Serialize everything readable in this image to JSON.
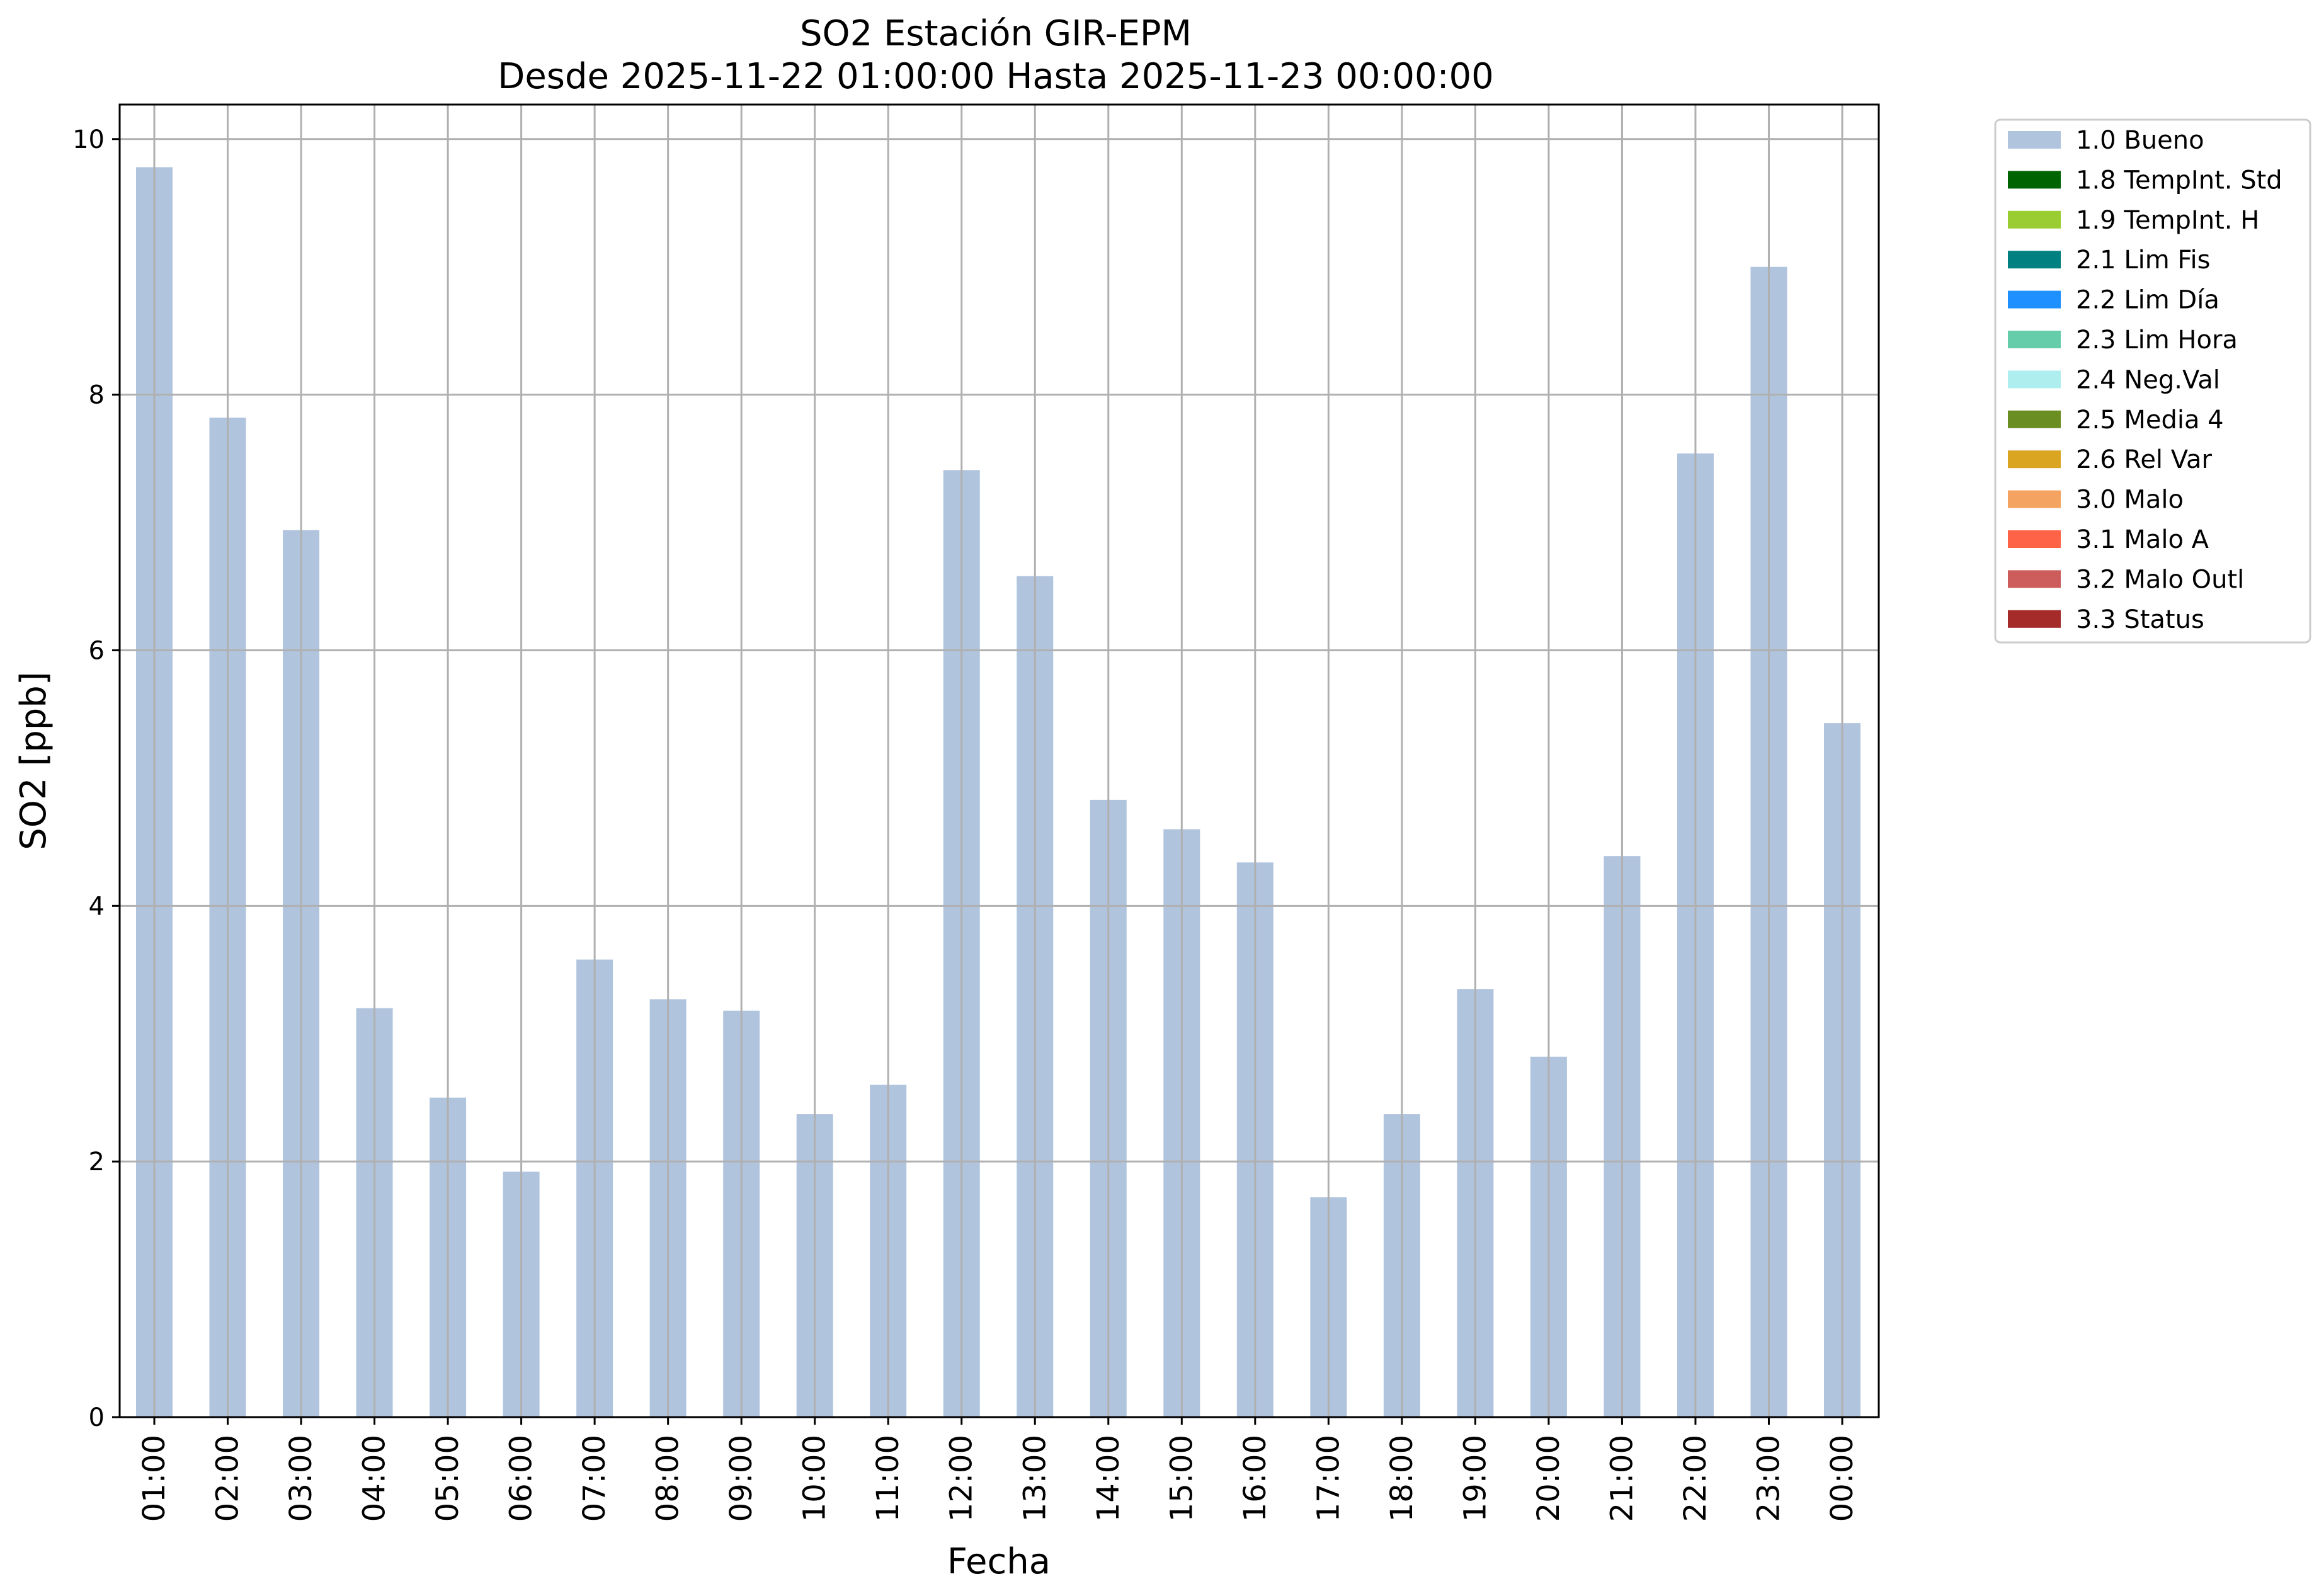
{
  "chart_data": {
    "type": "bar",
    "title": "SO2 Estación GIR-EPM",
    "subtitle": "Desde 2025-11-22 01:00:00 Hasta 2025-11-23 00:00:00",
    "xlabel": "Fecha",
    "ylabel": "SO2 [ppb]",
    "ylim": [
      0,
      10.27
    ],
    "yticks": [
      0,
      2,
      4,
      6,
      8,
      10
    ],
    "grid": true,
    "legend_position": "outside-right",
    "categories": [
      "01:00",
      "02:00",
      "03:00",
      "04:00",
      "05:00",
      "06:00",
      "07:00",
      "08:00",
      "09:00",
      "10:00",
      "11:00",
      "12:00",
      "13:00",
      "14:00",
      "15:00",
      "16:00",
      "17:00",
      "18:00",
      "19:00",
      "20:00",
      "21:00",
      "22:00",
      "23:00",
      "00:00"
    ],
    "series": [
      {
        "name": "1.0 Bueno",
        "color": "#b0c4de",
        "values": [
          9.78,
          7.82,
          6.94,
          3.2,
          2.5,
          1.92,
          3.58,
          3.27,
          3.18,
          2.37,
          2.6,
          7.41,
          6.58,
          4.83,
          4.6,
          4.34,
          1.72,
          2.37,
          3.35,
          2.82,
          4.39,
          7.54,
          9.0,
          5.43
        ]
      }
    ],
    "legend": [
      {
        "label": "1.0 Bueno",
        "color": "#b0c4de"
      },
      {
        "label": "1.8 TempInt. Std",
        "color": "#006400"
      },
      {
        "label": "1.9 TempInt. H",
        "color": "#9acd32"
      },
      {
        "label": "2.1 Lim Fis",
        "color": "#008080"
      },
      {
        "label": "2.2 Lim Día",
        "color": "#1e90ff"
      },
      {
        "label": "2.3 Lim Hora",
        "color": "#66cdaa"
      },
      {
        "label": "2.4 Neg.Val",
        "color": "#afeeee"
      },
      {
        "label": "2.5 Media 4",
        "color": "#6b8e23"
      },
      {
        "label": "2.6 Rel Var",
        "color": "#daa520"
      },
      {
        "label": "3.0 Malo",
        "color": "#f4a460"
      },
      {
        "label": "3.1 Malo A",
        "color": "#ff6347"
      },
      {
        "label": "3.2 Malo Outl",
        "color": "#cd5c5c"
      },
      {
        "label": "3.3 Status",
        "color": "#a52a2a"
      }
    ]
  }
}
